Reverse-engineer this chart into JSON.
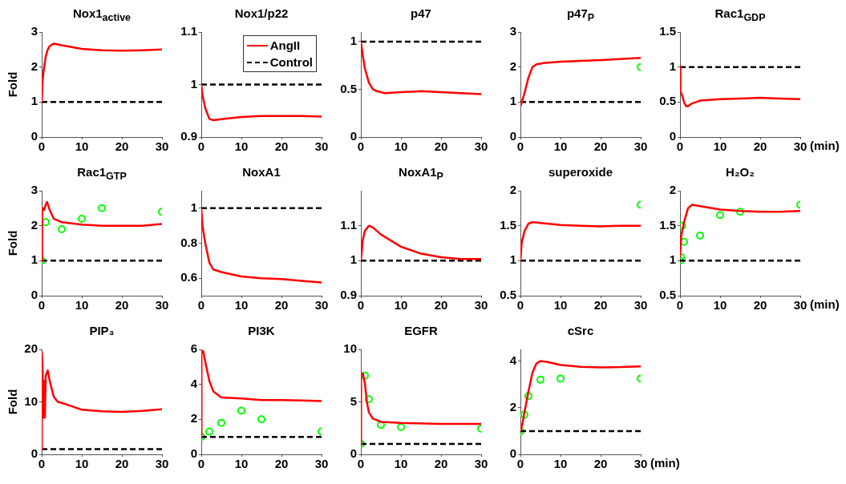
{
  "chart_data": [
    {
      "type": "line",
      "title": "Nox1$_{active}$",
      "ylabel": "Fold",
      "xlim": [
        0,
        30
      ],
      "xticks": [
        0,
        10,
        20,
        30
      ],
      "ylim": [
        0,
        3
      ],
      "yticks": [
        0,
        1,
        2,
        3
      ],
      "series": [
        {
          "color": "#ff0000",
          "x": [
            0,
            0.2,
            0.5,
            1,
            1.5,
            2,
            3,
            5,
            10,
            15,
            20,
            25,
            30
          ],
          "values": [
            1.0,
            1.6,
            1.9,
            2.3,
            2.5,
            2.6,
            2.67,
            2.62,
            2.52,
            2.48,
            2.47,
            2.48,
            2.5
          ]
        },
        {
          "color": "#000000",
          "line_style": "dashed",
          "x": [
            0,
            30
          ],
          "values": [
            1,
            1
          ]
        }
      ]
    },
    {
      "type": "line",
      "title": "Nox1/p22",
      "legend": "top right",
      "xlim": [
        0,
        30
      ],
      "xticks": [
        0,
        10,
        20,
        30
      ],
      "ylim": [
        0.9,
        1.1
      ],
      "yticks": [
        0.9,
        1,
        1.1
      ],
      "series": [
        {
          "name": "AngII",
          "color": "#ff0000",
          "x": [
            0,
            0.3,
            1,
            2,
            3,
            5,
            10,
            15,
            20,
            25,
            30
          ],
          "values": [
            1.0,
            0.98,
            0.955,
            0.935,
            0.932,
            0.934,
            0.938,
            0.94,
            0.94,
            0.94,
            0.939
          ]
        },
        {
          "name": "Control",
          "color": "#000000",
          "line_style": "dashed",
          "x": [
            0,
            30
          ],
          "values": [
            1,
            1
          ]
        }
      ]
    },
    {
      "type": "line",
      "title": "p47",
      "xlim": [
        0,
        30
      ],
      "xticks": [
        0,
        10,
        20,
        30
      ],
      "ylim": [
        0,
        1.1
      ],
      "yticks": [
        0,
        0.5,
        1
      ],
      "series": [
        {
          "color": "#ff0000",
          "x": [
            0,
            0.5,
            1,
            2,
            3,
            4,
            6,
            10,
            15,
            20,
            25,
            30
          ],
          "values": [
            1.0,
            0.85,
            0.72,
            0.57,
            0.5,
            0.48,
            0.46,
            0.47,
            0.48,
            0.47,
            0.46,
            0.45
          ]
        },
        {
          "color": "#000000",
          "line_style": "dashed",
          "x": [
            0,
            30
          ],
          "values": [
            1,
            1
          ]
        }
      ]
    },
    {
      "type": "line",
      "title": "p47$_{P}$",
      "xlim": [
        0,
        30
      ],
      "xticks": [
        0,
        10,
        20,
        30
      ],
      "ylim": [
        0,
        3
      ],
      "yticks": [
        0,
        1,
        2,
        3
      ],
      "series": [
        {
          "color": "#ff0000",
          "x": [
            0,
            0.5,
            1,
            2,
            3,
            4,
            6,
            10,
            20,
            30
          ],
          "values": [
            0.88,
            1.05,
            1.25,
            1.7,
            2.0,
            2.08,
            2.12,
            2.15,
            2.2,
            2.26
          ]
        },
        {
          "color": "#000000",
          "line_style": "dashed",
          "x": [
            0,
            30
          ],
          "values": [
            1,
            1
          ]
        },
        {
          "type": "scatter",
          "color": "#00ff00",
          "marker": "circle",
          "x": [
            30
          ],
          "values": [
            2.0
          ]
        }
      ]
    },
    {
      "type": "line",
      "title": "Rac1$_{GDP}$",
      "xlabel": "(min)",
      "xlim": [
        0,
        30
      ],
      "xticks": [
        0,
        10,
        20,
        30
      ],
      "ylim": [
        0,
        1.5
      ],
      "yticks": [
        0,
        0.5,
        1,
        1.5
      ],
      "series": [
        {
          "color": "#ff0000",
          "x": [
            0,
            0.1,
            0.5,
            1,
            1.5,
            2,
            3,
            5,
            10,
            15,
            20,
            25,
            30
          ],
          "values": [
            1.0,
            0.65,
            0.6,
            0.5,
            0.44,
            0.44,
            0.48,
            0.52,
            0.54,
            0.55,
            0.56,
            0.55,
            0.54
          ]
        },
        {
          "color": "#000000",
          "line_style": "dashed",
          "x": [
            0,
            30
          ],
          "values": [
            1,
            1
          ]
        }
      ]
    },
    {
      "type": "line",
      "title": "Rac1$_{GTP}$",
      "ylabel": "Fold",
      "xlim": [
        0,
        30
      ],
      "xticks": [
        0,
        10,
        20,
        30
      ],
      "ylim": [
        0,
        3
      ],
      "yticks": [
        0,
        1,
        2,
        3
      ],
      "series": [
        {
          "color": "#ff0000",
          "x": [
            0,
            0.1,
            0.3,
            0.6,
            1,
            1.3,
            2,
            3,
            5,
            10,
            15,
            20,
            25,
            30
          ],
          "values": [
            1.0,
            2.4,
            2.5,
            2.45,
            2.6,
            2.68,
            2.45,
            2.2,
            2.1,
            2.03,
            2.0,
            2.0,
            2.0,
            2.05
          ]
        },
        {
          "color": "#000000",
          "line_style": "dashed",
          "x": [
            0,
            30
          ],
          "values": [
            1,
            1
          ]
        },
        {
          "type": "scatter",
          "color": "#00ff00",
          "marker": "circle",
          "x": [
            0,
            1,
            5,
            10,
            15,
            30
          ],
          "values": [
            1.0,
            2.1,
            1.9,
            2.2,
            2.5,
            2.4
          ]
        }
      ]
    },
    {
      "type": "line",
      "title": "NoxA1",
      "xlim": [
        0,
        30
      ],
      "xticks": [
        0,
        10,
        20,
        30
      ],
      "ylim": [
        0.5,
        1.1
      ],
      "yticks": [
        0.6,
        0.8,
        1
      ],
      "series": [
        {
          "color": "#ff0000",
          "x": [
            0,
            0.3,
            1,
            2,
            3,
            5,
            10,
            15,
            20,
            25,
            30
          ],
          "values": [
            1.0,
            0.9,
            0.8,
            0.69,
            0.65,
            0.635,
            0.61,
            0.6,
            0.595,
            0.585,
            0.575
          ]
        },
        {
          "color": "#000000",
          "line_style": "dashed",
          "x": [
            0,
            30
          ],
          "values": [
            1,
            1
          ]
        }
      ]
    },
    {
      "type": "line",
      "title": "NoxA1$_{P}$",
      "xlim": [
        0,
        30
      ],
      "xticks": [
        0,
        10,
        20,
        30
      ],
      "ylim": [
        0.9,
        1.2
      ],
      "yticks": [
        0.9,
        1,
        1.1
      ],
      "series": [
        {
          "color": "#ff0000",
          "x": [
            0,
            0.5,
            1,
            2,
            3,
            5,
            10,
            15,
            20,
            25,
            30
          ],
          "values": [
            1.0,
            1.06,
            1.085,
            1.1,
            1.095,
            1.075,
            1.04,
            1.02,
            1.01,
            1.005,
            1.005
          ]
        },
        {
          "color": "#000000",
          "line_style": "dashed",
          "x": [
            0,
            30
          ],
          "values": [
            1,
            1
          ]
        }
      ]
    },
    {
      "type": "line",
      "title": "superoxide",
      "xlim": [
        0,
        30
      ],
      "xticks": [
        0,
        10,
        20,
        30
      ],
      "ylim": [
        0.5,
        2
      ],
      "yticks": [
        0.5,
        1,
        1.5,
        2
      ],
      "series": [
        {
          "color": "#ff0000",
          "x": [
            0,
            0.3,
            1,
            2,
            3,
            5,
            10,
            15,
            20,
            25,
            30
          ],
          "values": [
            1.0,
            1.25,
            1.42,
            1.53,
            1.55,
            1.54,
            1.51,
            1.5,
            1.49,
            1.5,
            1.5
          ]
        },
        {
          "color": "#000000",
          "line_style": "dashed",
          "x": [
            0,
            30
          ],
          "values": [
            1,
            1
          ]
        },
        {
          "type": "scatter",
          "color": "#00ff00",
          "marker": "circle",
          "x": [
            30
          ],
          "values": [
            1.8
          ]
        }
      ]
    },
    {
      "type": "line",
      "title": "H₂O₂",
      "xlabel": "(min)",
      "xlim": [
        0,
        30
      ],
      "xticks": [
        0,
        10,
        20,
        30
      ],
      "ylim": [
        0.5,
        2
      ],
      "yticks": [
        0.5,
        1,
        1.5,
        2
      ],
      "series": [
        {
          "color": "#ff0000",
          "x": [
            0,
            0.3,
            1,
            2,
            3,
            5,
            10,
            15,
            20,
            25,
            30
          ],
          "values": [
            1.05,
            1.35,
            1.55,
            1.75,
            1.8,
            1.78,
            1.73,
            1.71,
            1.7,
            1.7,
            1.71
          ]
        },
        {
          "color": "#000000",
          "line_style": "dashed",
          "x": [
            0,
            30
          ],
          "values": [
            1,
            1
          ]
        },
        {
          "type": "scatter",
          "color": "#00ff00",
          "marker": "circle",
          "x": [
            0,
            0.25,
            0.5,
            1,
            5,
            10,
            15,
            30
          ],
          "values": [
            1.0,
            1.05,
            1.5,
            1.27,
            1.36,
            1.65,
            1.7,
            1.8
          ]
        }
      ]
    },
    {
      "type": "line",
      "title": "PIP₃",
      "ylabel": "Fold",
      "xlim": [
        0,
        30
      ],
      "xticks": [
        0,
        10,
        20,
        30
      ],
      "ylim": [
        0,
        20
      ],
      "yticks": [
        0,
        10,
        20
      ],
      "series": [
        {
          "color": "#ff0000",
          "x": [
            0,
            0.02,
            0.2,
            0.4,
            0.6,
            0.8,
            1,
            1.5,
            2,
            3,
            4,
            5,
            7,
            10,
            15,
            20,
            25,
            30
          ],
          "values": [
            1.0,
            19.5,
            17,
            7,
            14,
            7,
            15,
            16,
            14,
            11,
            10,
            9.8,
            9.3,
            8.5,
            8.2,
            8.1,
            8.3,
            8.6
          ]
        },
        {
          "color": "#000000",
          "line_style": "dashed",
          "x": [
            0,
            30
          ],
          "values": [
            1,
            1
          ]
        }
      ]
    },
    {
      "type": "line",
      "title": "PI3K",
      "xlim": [
        0,
        30
      ],
      "xticks": [
        0,
        10,
        20,
        30
      ],
      "ylim": [
        0,
        6
      ],
      "yticks": [
        0,
        2,
        4,
        6
      ],
      "series": [
        {
          "color": "#ff0000",
          "x": [
            0,
            0.05,
            0.5,
            1,
            2,
            3,
            5,
            10,
            15,
            20,
            25,
            30
          ],
          "values": [
            1.0,
            5.9,
            5.9,
            5.3,
            4.2,
            3.6,
            3.25,
            3.2,
            3.1,
            3.1,
            3.08,
            3.05
          ]
        },
        {
          "color": "#000000",
          "line_style": "dashed",
          "x": [
            0,
            30
          ],
          "values": [
            1,
            1
          ]
        },
        {
          "type": "scatter",
          "color": "#00ff00",
          "marker": "circle",
          "x": [
            0,
            2,
            5,
            10,
            15,
            30
          ],
          "values": [
            1.0,
            1.3,
            1.8,
            2.5,
            2.0,
            1.3
          ]
        }
      ]
    },
    {
      "type": "line",
      "title": "EGFR",
      "xlim": [
        0,
        30
      ],
      "xticks": [
        0,
        10,
        20,
        30
      ],
      "ylim": [
        0,
        10
      ],
      "yticks": [
        0,
        5,
        10
      ],
      "series": [
        {
          "color": "#ff0000",
          "x": [
            0,
            0.05,
            0.5,
            1,
            1.5,
            2,
            3,
            5,
            10,
            20,
            30
          ],
          "values": [
            1.0,
            7.7,
            7.7,
            6.8,
            5.0,
            4.0,
            3.4,
            3.1,
            3.0,
            2.9,
            2.9
          ]
        },
        {
          "color": "#000000",
          "line_style": "dashed",
          "x": [
            0,
            30
          ],
          "values": [
            1,
            1
          ]
        },
        {
          "type": "scatter",
          "color": "#00ff00",
          "marker": "circle",
          "x": [
            0,
            1,
            2,
            5,
            10,
            30
          ],
          "values": [
            1.0,
            7.5,
            5.25,
            2.8,
            2.6,
            2.45
          ]
        }
      ]
    },
    {
      "type": "line",
      "title": "cSrc",
      "xlabel": "(min)",
      "xlim": [
        0,
        30
      ],
      "xticks": [
        0,
        10,
        20,
        30
      ],
      "ylim": [
        0,
        4.5
      ],
      "yticks": [
        0,
        2,
        4
      ],
      "series": [
        {
          "color": "#ff0000",
          "x": [
            0,
            0.5,
            1,
            2,
            3,
            4,
            5,
            7,
            10,
            15,
            20,
            25,
            30
          ],
          "values": [
            1.0,
            1.3,
            1.8,
            2.7,
            3.5,
            3.9,
            4.0,
            3.95,
            3.83,
            3.75,
            3.73,
            3.74,
            3.77
          ]
        },
        {
          "color": "#000000",
          "line_style": "dashed",
          "x": [
            0,
            30
          ],
          "values": [
            1,
            1
          ]
        },
        {
          "type": "scatter",
          "color": "#00ff00",
          "marker": "circle",
          "x": [
            0,
            1,
            2,
            5,
            10,
            30
          ],
          "values": [
            1.0,
            1.7,
            2.5,
            3.2,
            3.25,
            3.25
          ]
        }
      ]
    }
  ]
}
